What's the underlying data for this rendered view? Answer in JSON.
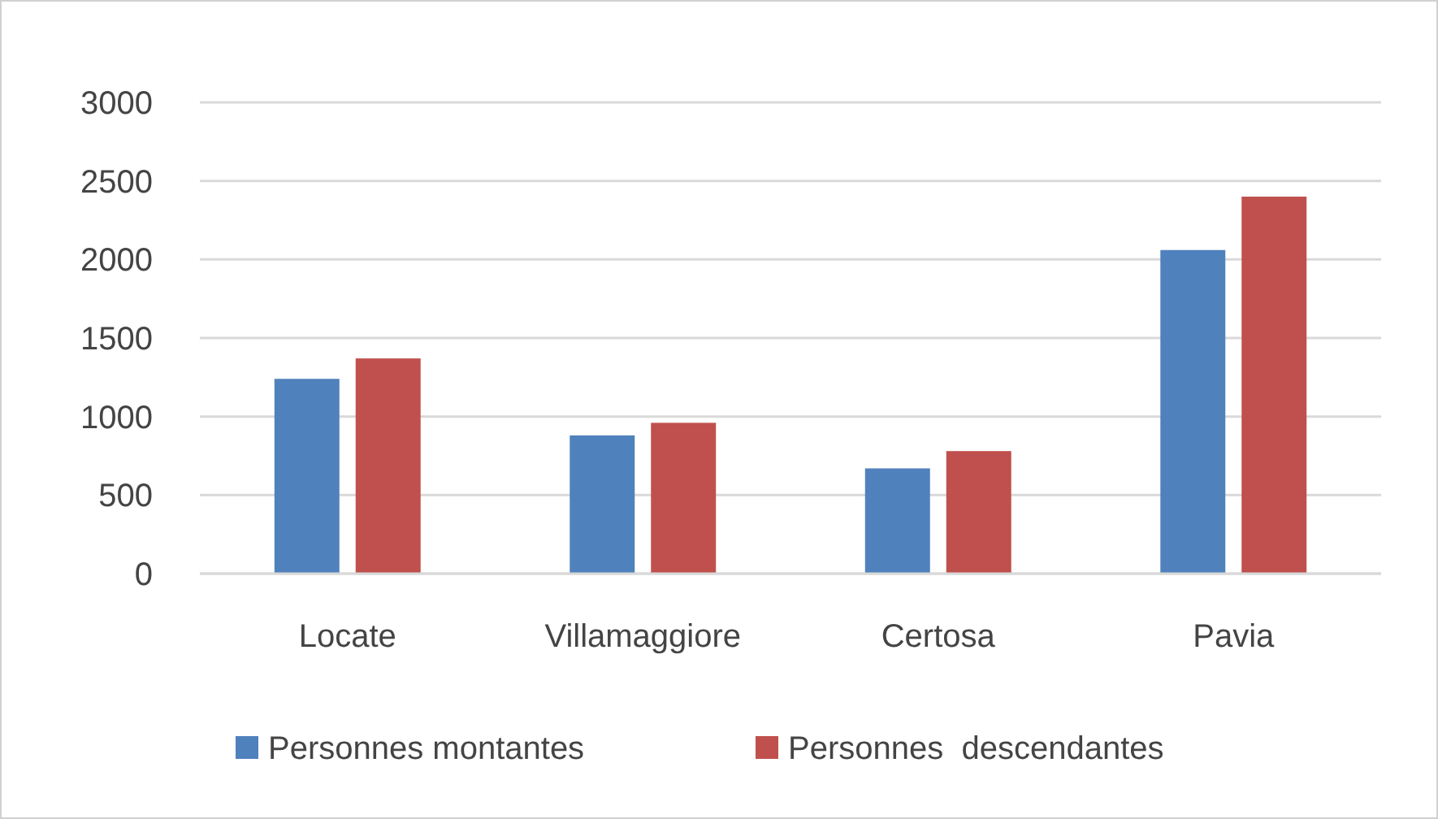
{
  "chart_data": {
    "type": "bar",
    "categories": [
      "Locate",
      "Villamaggiore",
      "Certosa",
      "Pavia"
    ],
    "series": [
      {
        "name": "Personnes montantes",
        "color": "#4f81bd",
        "values": [
          1240,
          880,
          670,
          2060
        ]
      },
      {
        "name": "Personnes  descendantes",
        "color": "#c0504d",
        "values": [
          1370,
          960,
          780,
          2400
        ]
      }
    ],
    "ylim": [
      0,
      3000
    ],
    "yticks": [
      0,
      500,
      1000,
      1500,
      2000,
      2500,
      3000
    ],
    "grid": "y",
    "legend": "bottom"
  }
}
